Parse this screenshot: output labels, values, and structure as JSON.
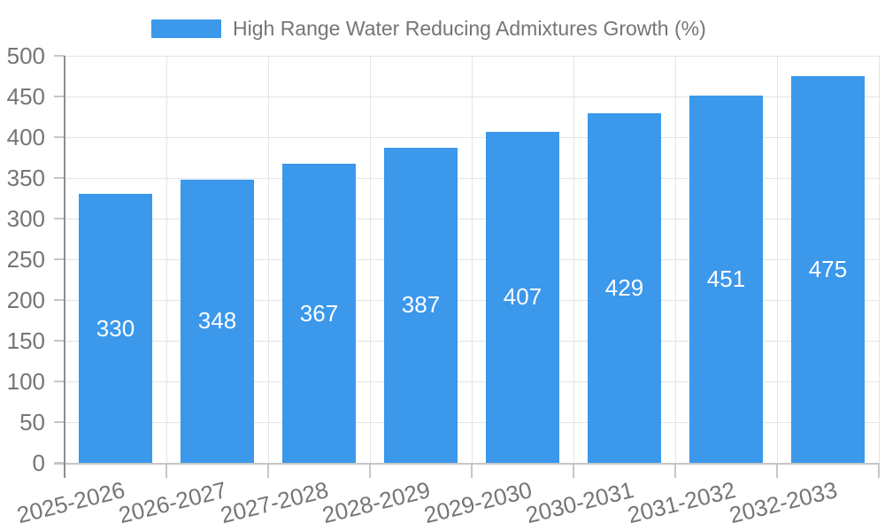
{
  "chart_data": {
    "type": "bar",
    "title": "High Range Water Reducing Admixtures Growth (%)",
    "legend_position": "top",
    "categories": [
      "2025-2026",
      "2026-2027",
      "2027-2028",
      "2028-2029",
      "2029-2030",
      "2030-2031",
      "2031-2032",
      "2032-2033"
    ],
    "values": [
      330,
      348,
      367,
      387,
      407,
      429,
      451,
      475
    ],
    "xlabel": "",
    "ylabel": "",
    "ylim": [
      0,
      500
    ],
    "ytick_interval": 50,
    "grid": true,
    "bar_color": "#3b98eb",
    "value_label_color": "#ffffff",
    "axis_text_color": "#757575"
  }
}
